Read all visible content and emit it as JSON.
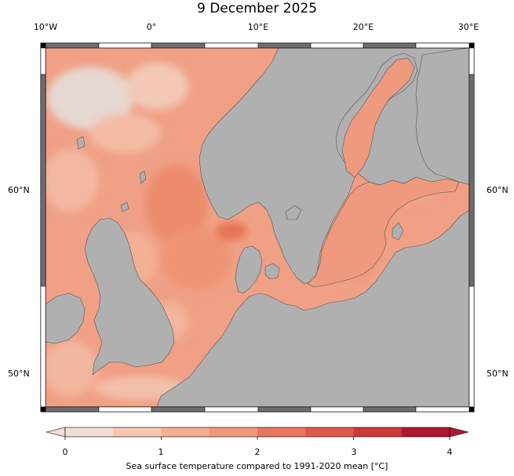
{
  "title": "9 December 2025",
  "longitude_ticks": [
    "10°W",
    "0°",
    "10°E",
    "20°E",
    "30°E"
  ],
  "latitude_ticks": [
    "60°N",
    "50°N"
  ],
  "colorbar": {
    "ticks": [
      "0",
      "1",
      "2",
      "3",
      "4"
    ],
    "label": "Sea surface temperature compared to 1991-2020 mean [°C]",
    "colors": [
      "#f2ddd3",
      "#f7c6b1",
      "#f6b091",
      "#f29878",
      "#e8765c",
      "#dd5a4b",
      "#cc3a3a",
      "#b01830"
    ]
  },
  "colors": {
    "land": "#b0b0b0",
    "sea_base": "#f0a085",
    "frame_dark": "#6e6e6e",
    "frame_light": "#ffffff"
  }
}
